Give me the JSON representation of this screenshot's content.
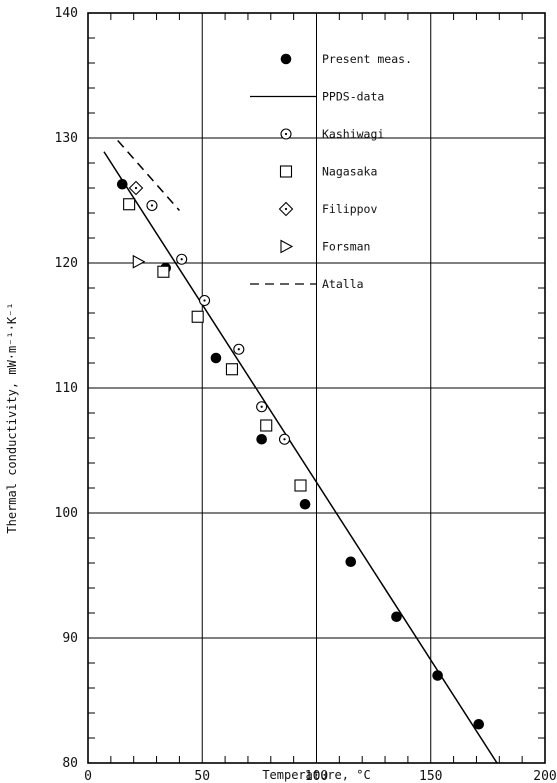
{
  "chart_data": {
    "type": "scatter",
    "xlabel": "Temperature, °C",
    "ylabel": "Thermal conductivity, mW·m⁻¹·K⁻¹",
    "xlim": [
      0,
      200
    ],
    "ylim": [
      80,
      140
    ],
    "x_ticks": [
      0,
      50,
      100,
      150,
      200
    ],
    "y_ticks": [
      80,
      90,
      100,
      110,
      120,
      130,
      140
    ],
    "grid": true,
    "legend_position": "top-right",
    "series": [
      {
        "name": "Present meas.",
        "marker": "filled-circle",
        "points": [
          [
            15,
            126.3
          ],
          [
            34,
            119.6
          ],
          [
            56,
            112.4
          ],
          [
            76,
            105.9
          ],
          [
            95,
            100.7
          ],
          [
            115,
            96.1
          ],
          [
            135,
            91.7
          ],
          [
            153,
            87.0
          ],
          [
            171,
            83.1
          ]
        ]
      },
      {
        "name": "PPDS-data",
        "style": "solid-line",
        "points": [
          [
            7,
            128.9
          ],
          [
            179,
            80.0
          ]
        ]
      },
      {
        "name": "Kashiwagi",
        "marker": "dotted-circle",
        "points": [
          [
            28,
            124.6
          ],
          [
            41,
            120.3
          ],
          [
            51,
            117.0
          ],
          [
            66,
            113.1
          ],
          [
            76,
            108.5
          ],
          [
            86,
            105.9
          ]
        ]
      },
      {
        "name": "Nagasaka",
        "marker": "open-square",
        "points": [
          [
            18,
            124.7
          ],
          [
            33,
            119.3
          ],
          [
            48,
            115.7
          ],
          [
            63,
            111.5
          ],
          [
            78,
            107.0
          ],
          [
            93,
            102.2
          ]
        ]
      },
      {
        "name": "Filippov",
        "marker": "dotted-diamond",
        "points": [
          [
            21,
            126.0
          ]
        ]
      },
      {
        "name": "Forsman",
        "marker": "open-triangle-right",
        "points": [
          [
            22,
            120.1
          ]
        ]
      },
      {
        "name": "Atalla",
        "style": "dashed-line",
        "points": [
          [
            13,
            129.8
          ],
          [
            40,
            124.2
          ]
        ]
      }
    ]
  }
}
